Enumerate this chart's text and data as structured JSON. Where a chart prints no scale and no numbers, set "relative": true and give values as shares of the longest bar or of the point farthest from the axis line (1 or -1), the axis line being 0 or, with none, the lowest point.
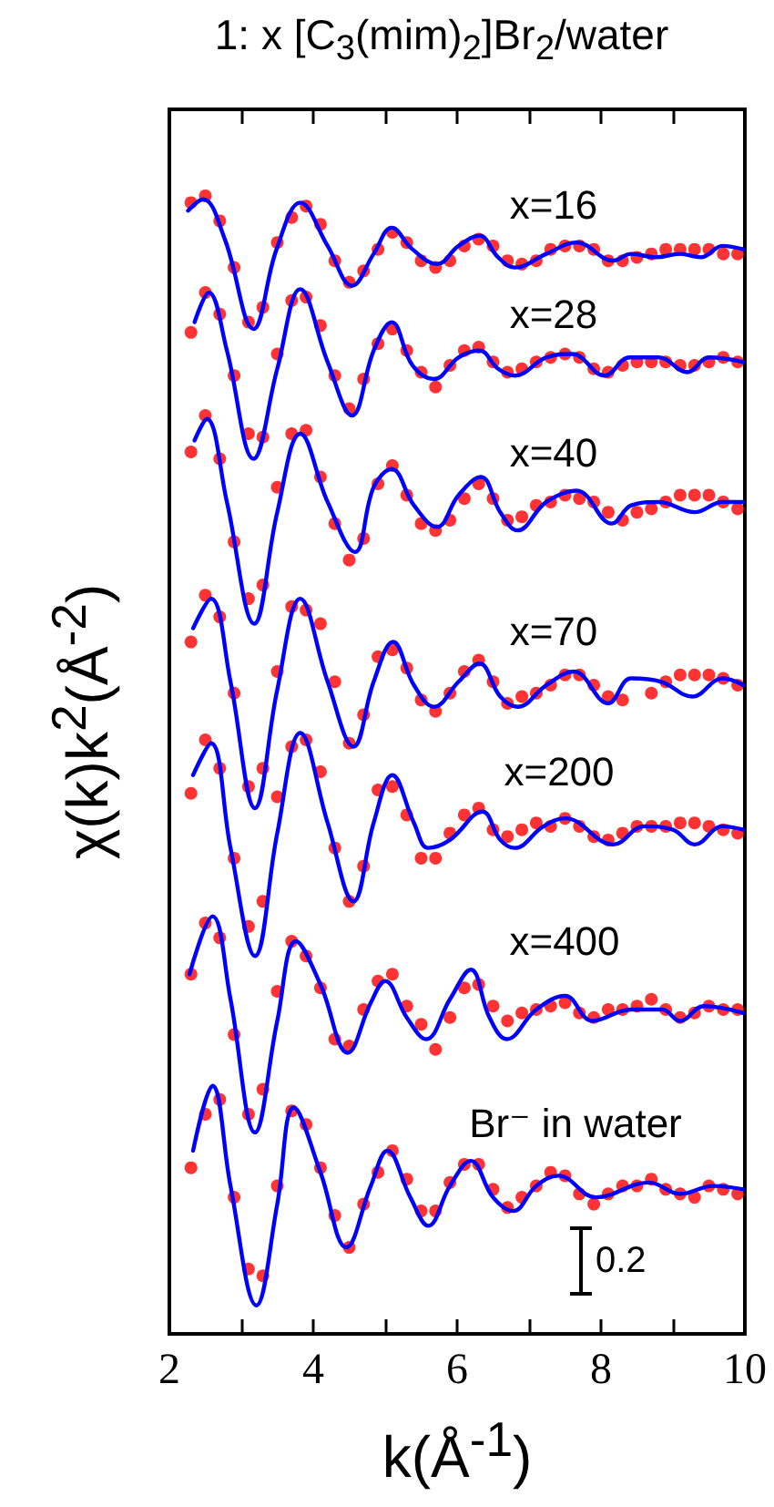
{
  "chart_data": {
    "type": "scatter",
    "relative": true,
    "title": "1: x [C$_{3}$(mim)$_{2}$]Br$_{2}$/water",
    "xlabel": "k(Å$^{-1}$)",
    "ylabel": "χ(k)k$^{2}$(Å$^{-2}$)",
    "x": [
      2.3,
      2.5,
      2.7,
      2.9,
      3.1,
      3.3,
      3.5,
      3.7,
      3.9,
      4.1,
      4.3,
      4.5,
      4.7,
      4.9,
      5.1,
      5.3,
      5.5,
      5.7,
      5.9,
      6.1,
      6.3,
      6.5,
      6.7,
      6.9,
      7.1,
      7.3,
      7.5,
      7.7,
      7.9,
      8.1,
      8.3,
      8.5,
      8.7,
      8.9,
      9.1,
      9.3,
      9.5,
      9.7,
      9.9
    ],
    "series": [
      {
        "color": "#ff0000",
        "values": [
          0.994,
          1,
          0.978,
          0.937,
          0.889,
          0.902,
          0.959,
          0.981,
          0.991,
          0.975,
          0.943,
          0.924,
          0.934,
          0.953,
          0.968,
          0.959,
          0.943,
          0.937,
          0.943,
          0.956,
          0.962,
          0.956,
          0.943,
          0.94,
          0.943,
          0.953,
          0.956,
          0.956,
          0.953,
          0.943,
          0.943,
          0.946,
          0.949,
          0.953,
          0.953,
          0.953,
          0.953,
          0.949,
          0.949
        ]
      },
      {
        "type": "line",
        "marker": "none",
        "color": "#0000ff",
        "x": [
          2.26,
          2.47,
          2.77,
          3.17,
          3.49,
          3.82,
          4.2,
          4.54,
          4.84,
          5.09,
          5.38,
          5.72,
          6.02,
          6.31,
          6.57,
          6.8,
          7.24,
          7.66,
          8.17,
          8.42,
          8.76,
          9.1,
          9.39,
          9.69,
          9.98
        ],
        "values": [
          0.987,
          0.997,
          0.962,
          0.883,
          0.953,
          0.994,
          0.956,
          0.921,
          0.949,
          0.972,
          0.953,
          0.94,
          0.956,
          0.965,
          0.946,
          0.937,
          0.949,
          0.959,
          0.943,
          0.949,
          0.946,
          0.949,
          0.946,
          0.956,
          0.953
        ]
      },
      {
        "color": "#ff0000",
        "values": [
          0.88,
          0.915,
          0.896,
          0.842,
          0.791,
          0.788,
          0.861,
          0.908,
          0.911,
          0.886,
          0.842,
          0.813,
          0.839,
          0.87,
          0.883,
          0.864,
          0.845,
          0.832,
          0.851,
          0.864,
          0.867,
          0.854,
          0.845,
          0.848,
          0.854,
          0.858,
          0.861,
          0.858,
          0.848,
          0.845,
          0.851,
          0.854,
          0.854,
          0.854,
          0.851,
          0.851,
          0.854,
          0.858,
          0.854
        ]
      },
      {
        "type": "line",
        "marker": "none",
        "color": "#0000ff",
        "x": [
          2.35,
          2.55,
          2.8,
          3.17,
          3.5,
          3.82,
          4.2,
          4.54,
          4.84,
          5.09,
          5.38,
          5.68,
          6.02,
          6.31,
          6.57,
          6.8,
          7.24,
          7.6,
          8.05,
          8.4,
          8.8,
          9.2,
          9.5,
          9.98
        ],
        "values": [
          0.889,
          0.915,
          0.864,
          0.769,
          0.848,
          0.918,
          0.854,
          0.807,
          0.864,
          0.889,
          0.851,
          0.839,
          0.858,
          0.864,
          0.848,
          0.842,
          0.858,
          0.861,
          0.842,
          0.858,
          0.858,
          0.845,
          0.858,
          0.854
        ]
      },
      {
        "color": "#ff0000",
        "values": [
          0.775,
          0.807,
          0.769,
          0.696,
          0.646,
          0.658,
          0.744,
          0.791,
          0.794,
          0.753,
          0.712,
          0.68,
          0.699,
          0.747,
          0.763,
          0.737,
          0.712,
          0.706,
          0.715,
          0.734,
          0.747,
          0.734,
          0.715,
          0.718,
          0.728,
          0.731,
          0.737,
          0.734,
          0.731,
          0.722,
          0.715,
          0.722,
          0.725,
          0.731,
          0.737,
          0.737,
          0.737,
          0.731,
          0.725
        ]
      },
      {
        "type": "line",
        "marker": "none",
        "color": "#0000ff",
        "x": [
          2.35,
          2.52,
          2.8,
          3.18,
          3.5,
          3.82,
          4.2,
          4.58,
          4.84,
          5.09,
          5.4,
          5.72,
          6.02,
          6.33,
          6.6,
          6.84,
          7.24,
          7.66,
          8.15,
          8.42,
          8.8,
          9.3,
          9.69,
          9.98
        ],
        "values": [
          0.785,
          0.804,
          0.731,
          0.624,
          0.722,
          0.791,
          0.731,
          0.687,
          0.744,
          0.76,
          0.728,
          0.709,
          0.737,
          0.753,
          0.722,
          0.706,
          0.731,
          0.741,
          0.712,
          0.728,
          0.731,
          0.722,
          0.731,
          0.731
        ]
      },
      {
        "color": "#ff0000",
        "values": [
          0.608,
          0.649,
          0.63,
          0.563,
          0.481,
          0.497,
          0.582,
          0.639,
          0.636,
          0.624,
          0.573,
          0.519,
          0.544,
          0.595,
          0.601,
          0.585,
          0.557,
          0.547,
          0.563,
          0.582,
          0.592,
          0.573,
          0.554,
          0.56,
          0.563,
          0.57,
          0.579,
          0.579,
          0.57,
          0.56,
          0.557,
          null,
          0.563,
          0.573,
          0.579,
          0.579,
          0.579,
          0.576,
          0.57
        ]
      },
      {
        "type": "line",
        "marker": "none",
        "color": "#0000ff",
        "x": [
          2.33,
          2.58,
          2.85,
          3.19,
          3.5,
          3.82,
          4.2,
          4.56,
          4.84,
          5.11,
          5.4,
          5.68,
          6.02,
          6.31,
          6.6,
          6.84,
          7.24,
          7.62,
          8.1,
          8.42,
          8.84,
          9.27,
          9.69,
          9.98
        ],
        "values": [
          0.62,
          0.646,
          0.573,
          0.462,
          0.566,
          0.646,
          0.573,
          0.516,
          0.573,
          0.608,
          0.57,
          0.551,
          0.573,
          0.589,
          0.56,
          0.551,
          0.57,
          0.582,
          0.554,
          0.576,
          0.573,
          0.56,
          0.576,
          0.57
        ]
      },
      {
        "color": "#ff0000",
        "values": [
          0.475,
          0.522,
          0.497,
          0.418,
          0.358,
          0.38,
          0.472,
          0.516,
          0.522,
          0.494,
          0.427,
          0.38,
          0.411,
          0.478,
          0.481,
          0.456,
          0.418,
          0.418,
          0.44,
          0.456,
          0.462,
          0.443,
          0.437,
          0.443,
          0.449,
          0.446,
          0.453,
          0.446,
          0.437,
          0.434,
          0.44,
          0.446,
          0.446,
          0.446,
          0.449,
          0.449,
          0.446,
          0.443,
          0.44
        ]
      },
      {
        "type": "line",
        "marker": "none",
        "color": "#0000ff",
        "x": [
          2.33,
          2.58,
          2.85,
          3.19,
          3.5,
          3.82,
          4.2,
          4.56,
          4.84,
          5.1,
          5.4,
          5.6,
          5.9,
          6.35,
          6.6,
          6.8,
          7.2,
          7.5,
          8.17,
          8.6,
          9.0,
          9.3,
          9.69,
          9.98
        ],
        "values": [
          0.491,
          0.519,
          0.427,
          0.332,
          0.44,
          0.528,
          0.449,
          0.38,
          0.449,
          0.491,
          0.449,
          0.427,
          0.434,
          0.459,
          0.434,
          0.427,
          0.446,
          0.453,
          0.43,
          0.446,
          0.443,
          0.43,
          0.446,
          0.443
        ]
      },
      {
        "color": "#ff0000",
        "values": [
          0.316,
          0.361,
          0.348,
          0.263,
          0.193,
          0.215,
          0.301,
          0.345,
          0.332,
          0.304,
          0.259,
          0.253,
          0.285,
          0.31,
          0.316,
          0.288,
          0.272,
          0.25,
          0.278,
          0.304,
          0.307,
          0.288,
          0.275,
          0.282,
          0.285,
          0.288,
          0.291,
          0.282,
          0.278,
          0.285,
          0.285,
          0.288,
          0.294,
          0.285,
          0.278,
          0.282,
          0.288,
          0.285,
          0.285
        ]
      },
      {
        "type": "line",
        "marker": "none",
        "color": "#0000ff",
        "x": [
          2.28,
          2.6,
          2.85,
          3.19,
          3.5,
          3.76,
          4.1,
          4.48,
          4.8,
          5.0,
          5.3,
          5.57,
          5.9,
          6.19,
          6.45,
          6.69,
          7.1,
          7.5,
          7.88,
          8.42,
          8.85,
          9.1,
          9.43,
          9.98
        ],
        "values": [
          0.316,
          0.367,
          0.294,
          0.177,
          0.275,
          0.345,
          0.307,
          0.247,
          0.291,
          0.31,
          0.278,
          0.259,
          0.294,
          0.32,
          0.278,
          0.259,
          0.285,
          0.297,
          0.275,
          0.285,
          0.285,
          0.275,
          0.288,
          0.282
        ]
      },
      {
        "color": "#ff0000",
        "values": [
          0.146,
          0.193,
          0.206,
          0.12,
          0.057,
          0.051,
          0.13,
          0.196,
          0.184,
          0.146,
          0.104,
          0.076,
          0.114,
          0.142,
          0.161,
          0.136,
          0.108,
          0.108,
          0.133,
          0.149,
          0.149,
          0.127,
          0.111,
          0.12,
          0.13,
          0.142,
          0.139,
          0.123,
          0.114,
          0.123,
          0.13,
          0.13,
          0.136,
          0.127,
          0.123,
          0.12,
          0.13,
          0.127,
          0.123
        ]
      },
      {
        "type": "line",
        "marker": "none",
        "color": "#0000ff",
        "x": [
          2.33,
          2.6,
          2.85,
          3.21,
          3.5,
          3.73,
          4.1,
          4.46,
          4.8,
          5.03,
          5.35,
          5.6,
          5.9,
          6.19,
          6.5,
          6.78,
          7.1,
          7.41,
          7.93,
          8.67,
          9.1,
          9.56,
          9.98
        ],
        "values": [
          0.161,
          0.218,
          0.13,
          0.025,
          0.114,
          0.199,
          0.142,
          0.076,
          0.13,
          0.161,
          0.12,
          0.095,
          0.13,
          0.152,
          0.12,
          0.108,
          0.13,
          0.139,
          0.12,
          0.133,
          0.123,
          0.13,
          0.127
        ]
      }
    ],
    "xlim": [
      2,
      10
    ],
    "xticks": [
      2,
      {
        "value": 3,
        "label": null
      },
      4,
      {
        "value": 5,
        "label": null
      },
      6,
      {
        "value": 7,
        "label": null
      },
      8,
      {
        "value": 9,
        "label": null
      },
      10
    ],
    "marker": "circle",
    "line_style": "solid",
    "annotations": [
      "x=16",
      "x=28",
      "x=40",
      "x=70",
      "x=200",
      "x=400",
      "Br⁻ in water",
      "0.2"
    ]
  }
}
